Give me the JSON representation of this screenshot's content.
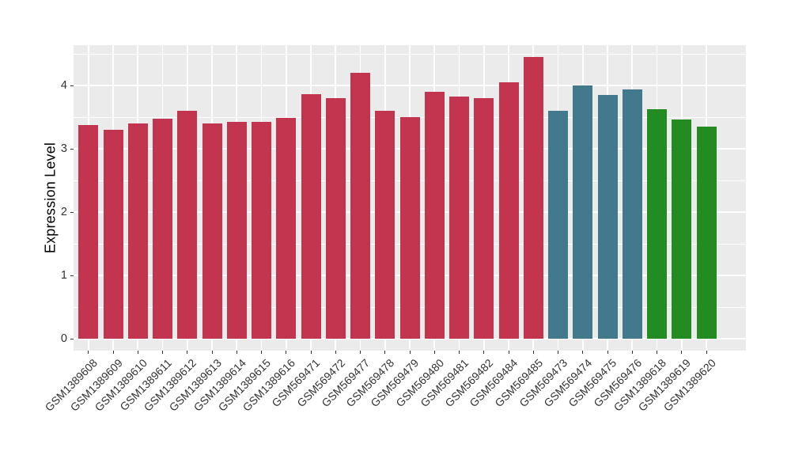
{
  "chart_data": {
    "type": "bar",
    "title": "",
    "xlabel": "",
    "ylabel": "Expression Level",
    "ylim": [
      0,
      4.64
    ],
    "yticks": [
      0,
      1,
      2,
      3,
      4
    ],
    "ytick_labels": [
      "0",
      "1",
      "2",
      "3",
      "4"
    ],
    "yticks_minor": [
      0.5,
      1.5,
      2.5,
      3.5,
      4.5
    ],
    "grid": "major-and-minor-white-on-gray",
    "legend_position": "none",
    "categories": [
      "GSM1389608",
      "GSM1389609",
      "GSM1389610",
      "GSM1389611",
      "GSM1389612",
      "GSM1389613",
      "GSM1389614",
      "GSM1389615",
      "GSM1389616",
      "GSM569471",
      "GSM569472",
      "GSM569477",
      "GSM569478",
      "GSM569479",
      "GSM569480",
      "GSM569481",
      "GSM569482",
      "GSM569484",
      "GSM569485",
      "GSM569473",
      "GSM569474",
      "GSM569475",
      "GSM569476",
      "GSM1389618",
      "GSM1389619",
      "GSM1389620"
    ],
    "values": [
      3.38,
      3.3,
      3.4,
      3.47,
      3.6,
      3.4,
      3.43,
      3.43,
      3.49,
      3.86,
      3.8,
      4.2,
      3.6,
      3.5,
      3.9,
      3.83,
      3.8,
      4.05,
      4.45,
      3.6,
      4.0,
      3.85,
      3.94,
      3.63,
      3.46,
      3.35
    ],
    "bar_colors": [
      "#C3344F",
      "#C3344F",
      "#C3344F",
      "#C3344F",
      "#C3344F",
      "#C3344F",
      "#C3344F",
      "#C3344F",
      "#C3344F",
      "#C3344F",
      "#C3344F",
      "#C3344F",
      "#C3344F",
      "#C3344F",
      "#C3344F",
      "#C3344F",
      "#C3344F",
      "#C3344F",
      "#C3344F",
      "#42798C",
      "#42798C",
      "#42798C",
      "#42798C",
      "#228B22",
      "#228B22",
      "#228B22"
    ],
    "color_groups": [
      {
        "color": "#C3344F",
        "count": 19
      },
      {
        "color": "#42798C",
        "count": 4
      },
      {
        "color": "#228B22",
        "count": 3
      }
    ]
  },
  "style_colors": {
    "panel_background": "#EBEBEB",
    "grid_line": "#FFFFFF",
    "axis_text": "#333333",
    "axis_title": "#000000",
    "tick_mark": "#333333",
    "page_background": "#FFFFFF"
  }
}
